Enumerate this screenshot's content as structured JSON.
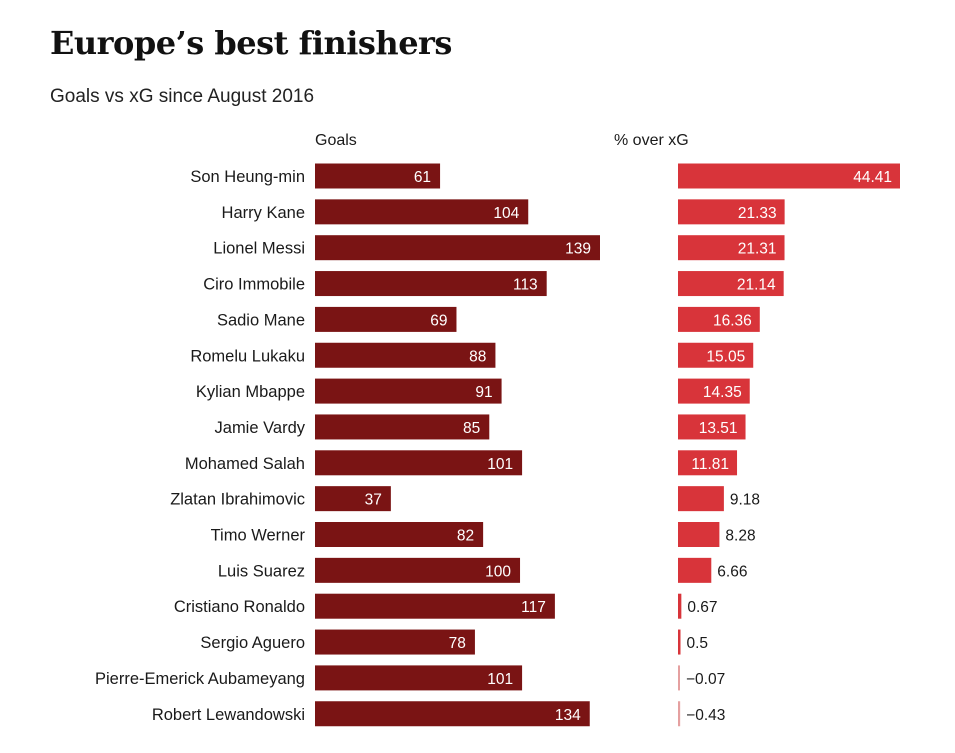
{
  "title": "Europe’s best finishers",
  "subtitle": "Goals vs xG since August 2016",
  "colors": {
    "goals_bar": "#7a1414",
    "pct_bar": "#d8343a",
    "zero_line": "#e5a0a0"
  },
  "chart_data": [
    {
      "type": "bar",
      "orientation": "horizontal",
      "title": "Goals",
      "categories": [
        "Son Heung-min",
        "Harry Kane",
        "Lionel Messi",
        "Ciro Immobile",
        "Sadio Mane",
        "Romelu Lukaku",
        "Kylian Mbappe",
        "Jamie Vardy",
        "Mohamed Salah",
        "Zlatan Ibrahimovic",
        "Timo Werner",
        "Luis Suarez",
        "Cristiano Ronaldo",
        "Sergio Aguero",
        "Pierre-Emerick Aubameyang",
        "Robert Lewandowski"
      ],
      "values": [
        61,
        104,
        139,
        113,
        69,
        88,
        91,
        85,
        101,
        37,
        82,
        100,
        117,
        78,
        101,
        134
      ],
      "value_labels": [
        "61",
        "104",
        "139",
        "113",
        "69",
        "88",
        "91",
        "85",
        "101",
        "37",
        "82",
        "100",
        "117",
        "78",
        "101",
        "134"
      ],
      "xlim": [
        0,
        139
      ]
    },
    {
      "type": "bar",
      "orientation": "horizontal",
      "title": "% over xG",
      "categories": [
        "Son Heung-min",
        "Harry Kane",
        "Lionel Messi",
        "Ciro Immobile",
        "Sadio Mane",
        "Romelu Lukaku",
        "Kylian Mbappe",
        "Jamie Vardy",
        "Mohamed Salah",
        "Zlatan Ibrahimovic",
        "Timo Werner",
        "Luis Suarez",
        "Cristiano Ronaldo",
        "Sergio Aguero",
        "Pierre-Emerick Aubameyang",
        "Robert Lewandowski"
      ],
      "values": [
        44.41,
        21.33,
        21.31,
        21.14,
        16.36,
        15.05,
        14.35,
        13.51,
        11.81,
        9.18,
        8.28,
        6.66,
        0.67,
        0.5,
        -0.07,
        -0.43
      ],
      "value_labels": [
        "44.41",
        "21.33",
        "21.31",
        "21.14",
        "16.36",
        "15.05",
        "14.35",
        "13.51",
        "11.81",
        "9.18",
        "8.28",
        "6.66",
        "0.67",
        "0.5",
        "−0.07",
        "−0.43"
      ],
      "xlim": [
        0,
        44.41
      ]
    }
  ]
}
